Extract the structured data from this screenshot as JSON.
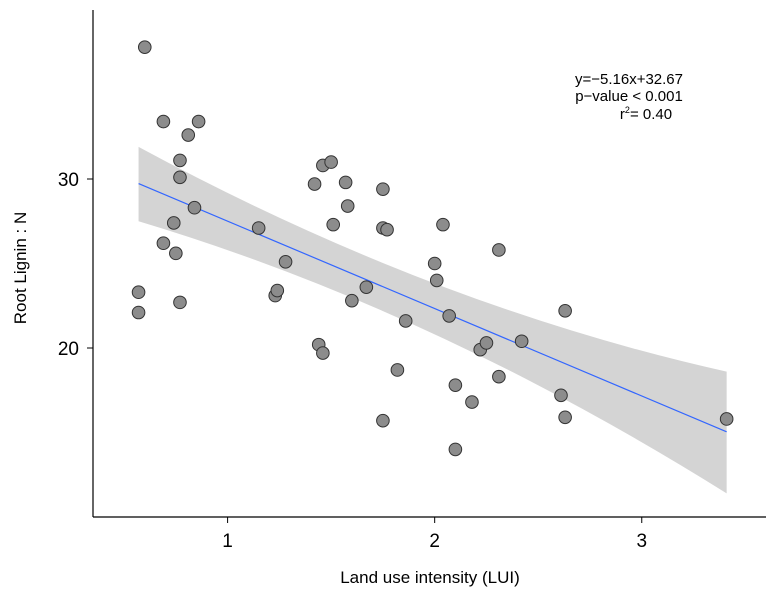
{
  "chart_data": {
    "type": "scatter",
    "title": "",
    "xlabel": "Land use intensity (LUI)",
    "ylabel": "Root Lignin : N",
    "xlim": [
      0.35,
      3.6
    ],
    "ylim": [
      10,
      40
    ],
    "x_ticks": [
      1,
      2,
      3
    ],
    "y_ticks": [
      20,
      30
    ],
    "x_tick_labels": [
      "1",
      "2",
      "3"
    ],
    "y_tick_labels": [
      "20",
      "30"
    ],
    "grid": false,
    "legend": "none",
    "point_color": "#8c8c8c",
    "line_color": "#3366ff",
    "band_color": "#cccccc",
    "points": [
      {
        "x": 0.57,
        "y": 23.3
      },
      {
        "x": 0.57,
        "y": 22.1
      },
      {
        "x": 0.6,
        "y": 37.8
      },
      {
        "x": 0.69,
        "y": 33.4
      },
      {
        "x": 0.69,
        "y": 26.2
      },
      {
        "x": 0.74,
        "y": 27.4
      },
      {
        "x": 0.75,
        "y": 25.6
      },
      {
        "x": 0.77,
        "y": 31.1
      },
      {
        "x": 0.77,
        "y": 30.1
      },
      {
        "x": 0.77,
        "y": 22.7
      },
      {
        "x": 0.81,
        "y": 32.6
      },
      {
        "x": 0.84,
        "y": 28.3
      },
      {
        "x": 0.86,
        "y": 33.4
      },
      {
        "x": 1.15,
        "y": 27.1
      },
      {
        "x": 1.23,
        "y": 23.1
      },
      {
        "x": 1.24,
        "y": 23.4
      },
      {
        "x": 1.28,
        "y": 25.1
      },
      {
        "x": 1.42,
        "y": 29.7
      },
      {
        "x": 1.44,
        "y": 20.2
      },
      {
        "x": 1.46,
        "y": 30.8
      },
      {
        "x": 1.46,
        "y": 19.7
      },
      {
        "x": 1.5,
        "y": 31.0
      },
      {
        "x": 1.51,
        "y": 27.3
      },
      {
        "x": 1.57,
        "y": 29.8
      },
      {
        "x": 1.58,
        "y": 28.4
      },
      {
        "x": 1.6,
        "y": 22.8
      },
      {
        "x": 1.67,
        "y": 23.6
      },
      {
        "x": 1.75,
        "y": 29.4
      },
      {
        "x": 1.75,
        "y": 27.1
      },
      {
        "x": 1.77,
        "y": 27.0
      },
      {
        "x": 1.75,
        "y": 15.7
      },
      {
        "x": 1.82,
        "y": 18.7
      },
      {
        "x": 1.86,
        "y": 21.6
      },
      {
        "x": 2.0,
        "y": 25.0
      },
      {
        "x": 2.01,
        "y": 24.0
      },
      {
        "x": 2.04,
        "y": 27.3
      },
      {
        "x": 2.07,
        "y": 21.9
      },
      {
        "x": 2.1,
        "y": 17.8
      },
      {
        "x": 2.1,
        "y": 14.0
      },
      {
        "x": 2.18,
        "y": 16.8
      },
      {
        "x": 2.22,
        "y": 19.9
      },
      {
        "x": 2.25,
        "y": 20.3
      },
      {
        "x": 2.31,
        "y": 25.8
      },
      {
        "x": 2.31,
        "y": 18.3
      },
      {
        "x": 2.42,
        "y": 20.4
      },
      {
        "x": 2.61,
        "y": 17.2
      },
      {
        "x": 2.63,
        "y": 22.2
      },
      {
        "x": 2.63,
        "y": 15.9
      },
      {
        "x": 3.41,
        "y": 15.8
      }
    ],
    "fit": {
      "x": [
        0.57,
        3.41
      ],
      "y": [
        29.73,
        15.04
      ],
      "band_upper": [
        31.9,
        18.6
      ],
      "band_lower": [
        27.5,
        11.4
      ],
      "equation": "y=−5.16x+32.67",
      "p_value": "p−value < 0.001",
      "r2_prefix": "r",
      "r2_sup": "2",
      "r2_value": "= 0.40"
    }
  }
}
